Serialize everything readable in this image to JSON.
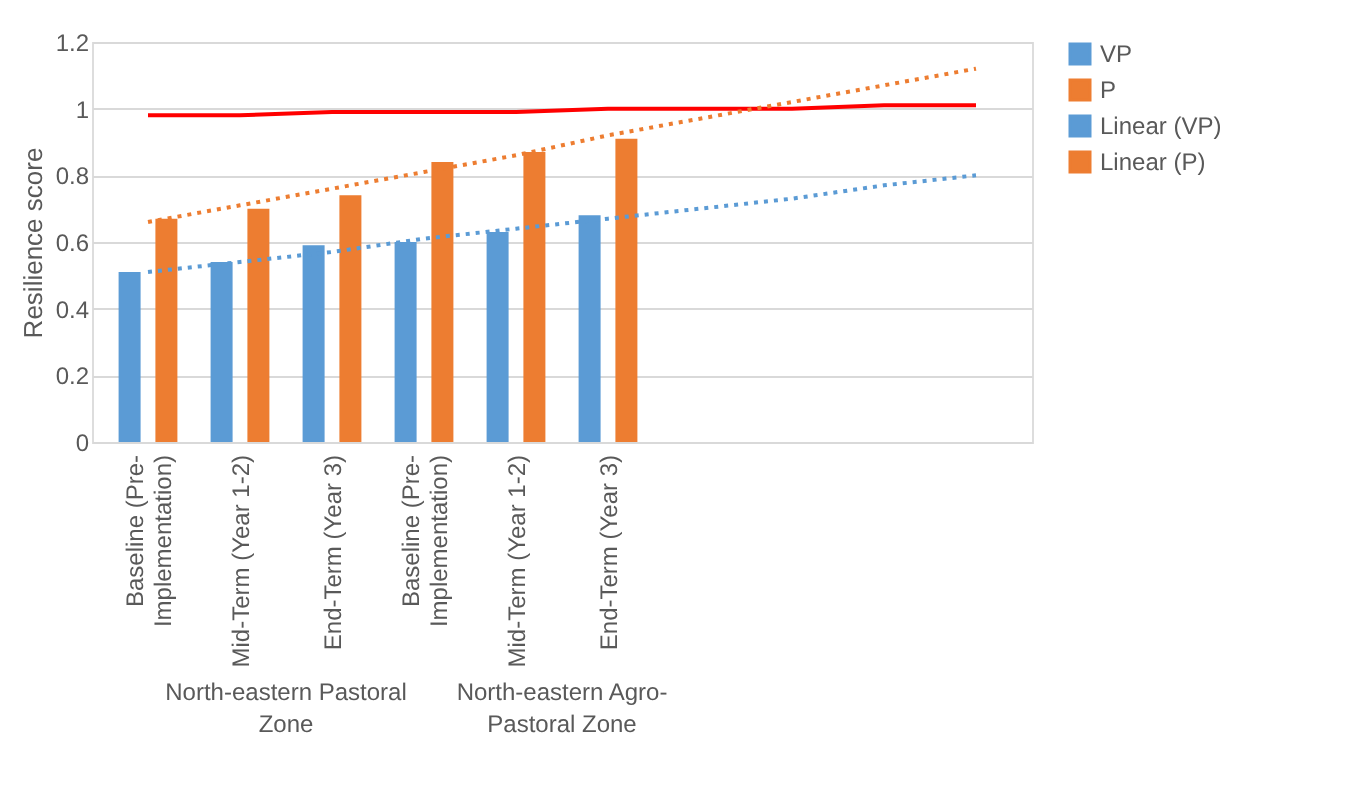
{
  "chart_data": {
    "type": "bar",
    "ylabel": "Resilience score",
    "categories": [
      "Baseline (Pre-Implementation)",
      "Mid-Term (Year 1-2)",
      "End-Term (Year 3)",
      "Baseline (Pre-Implementation)",
      "Mid-Term (Year 1-2)",
      "End-Term (Year 3)",
      null,
      null,
      null,
      null
    ],
    "series": [
      {
        "name": "VP",
        "color": "#5b9bd5",
        "values": [
          0.51,
          0.54,
          0.59,
          0.6,
          0.63,
          0.68,
          null,
          null,
          null,
          null
        ]
      },
      {
        "name": "P",
        "color": "#ed7d31",
        "values": [
          0.67,
          0.7,
          0.74,
          0.84,
          0.87,
          0.91,
          null,
          null,
          null,
          null
        ]
      },
      {
        "type": "line",
        "color": "#ff0000",
        "line_style": "solid",
        "values": [
          0.98,
          0.98,
          0.99,
          0.99,
          0.99,
          1.0,
          1.0,
          1.0,
          1.01,
          1.01
        ]
      },
      {
        "name": "Linear (VP)",
        "type": "line",
        "color": "#5b9bd5",
        "line_style": "dotted",
        "values": [
          0.51,
          0.54,
          0.57,
          0.61,
          0.64,
          0.67,
          0.7,
          0.73,
          0.77,
          0.8
        ]
      },
      {
        "name": "Linear (P)",
        "type": "line",
        "color": "#ed7d31",
        "line_style": "dotted",
        "values": [
          0.66,
          0.71,
          0.76,
          0.81,
          0.86,
          0.92,
          0.97,
          1.02,
          1.07,
          1.12
        ]
      }
    ],
    "annotations": [
      "North-eastern Pastoral Zone",
      "North-eastern Agro-Pastoral Zone"
    ],
    "ylim": [
      0,
      1.2
    ],
    "yticks": [
      0,
      0.2,
      0.4,
      0.6,
      0.8,
      1,
      1.2
    ],
    "grid": "y",
    "legend": "right"
  }
}
